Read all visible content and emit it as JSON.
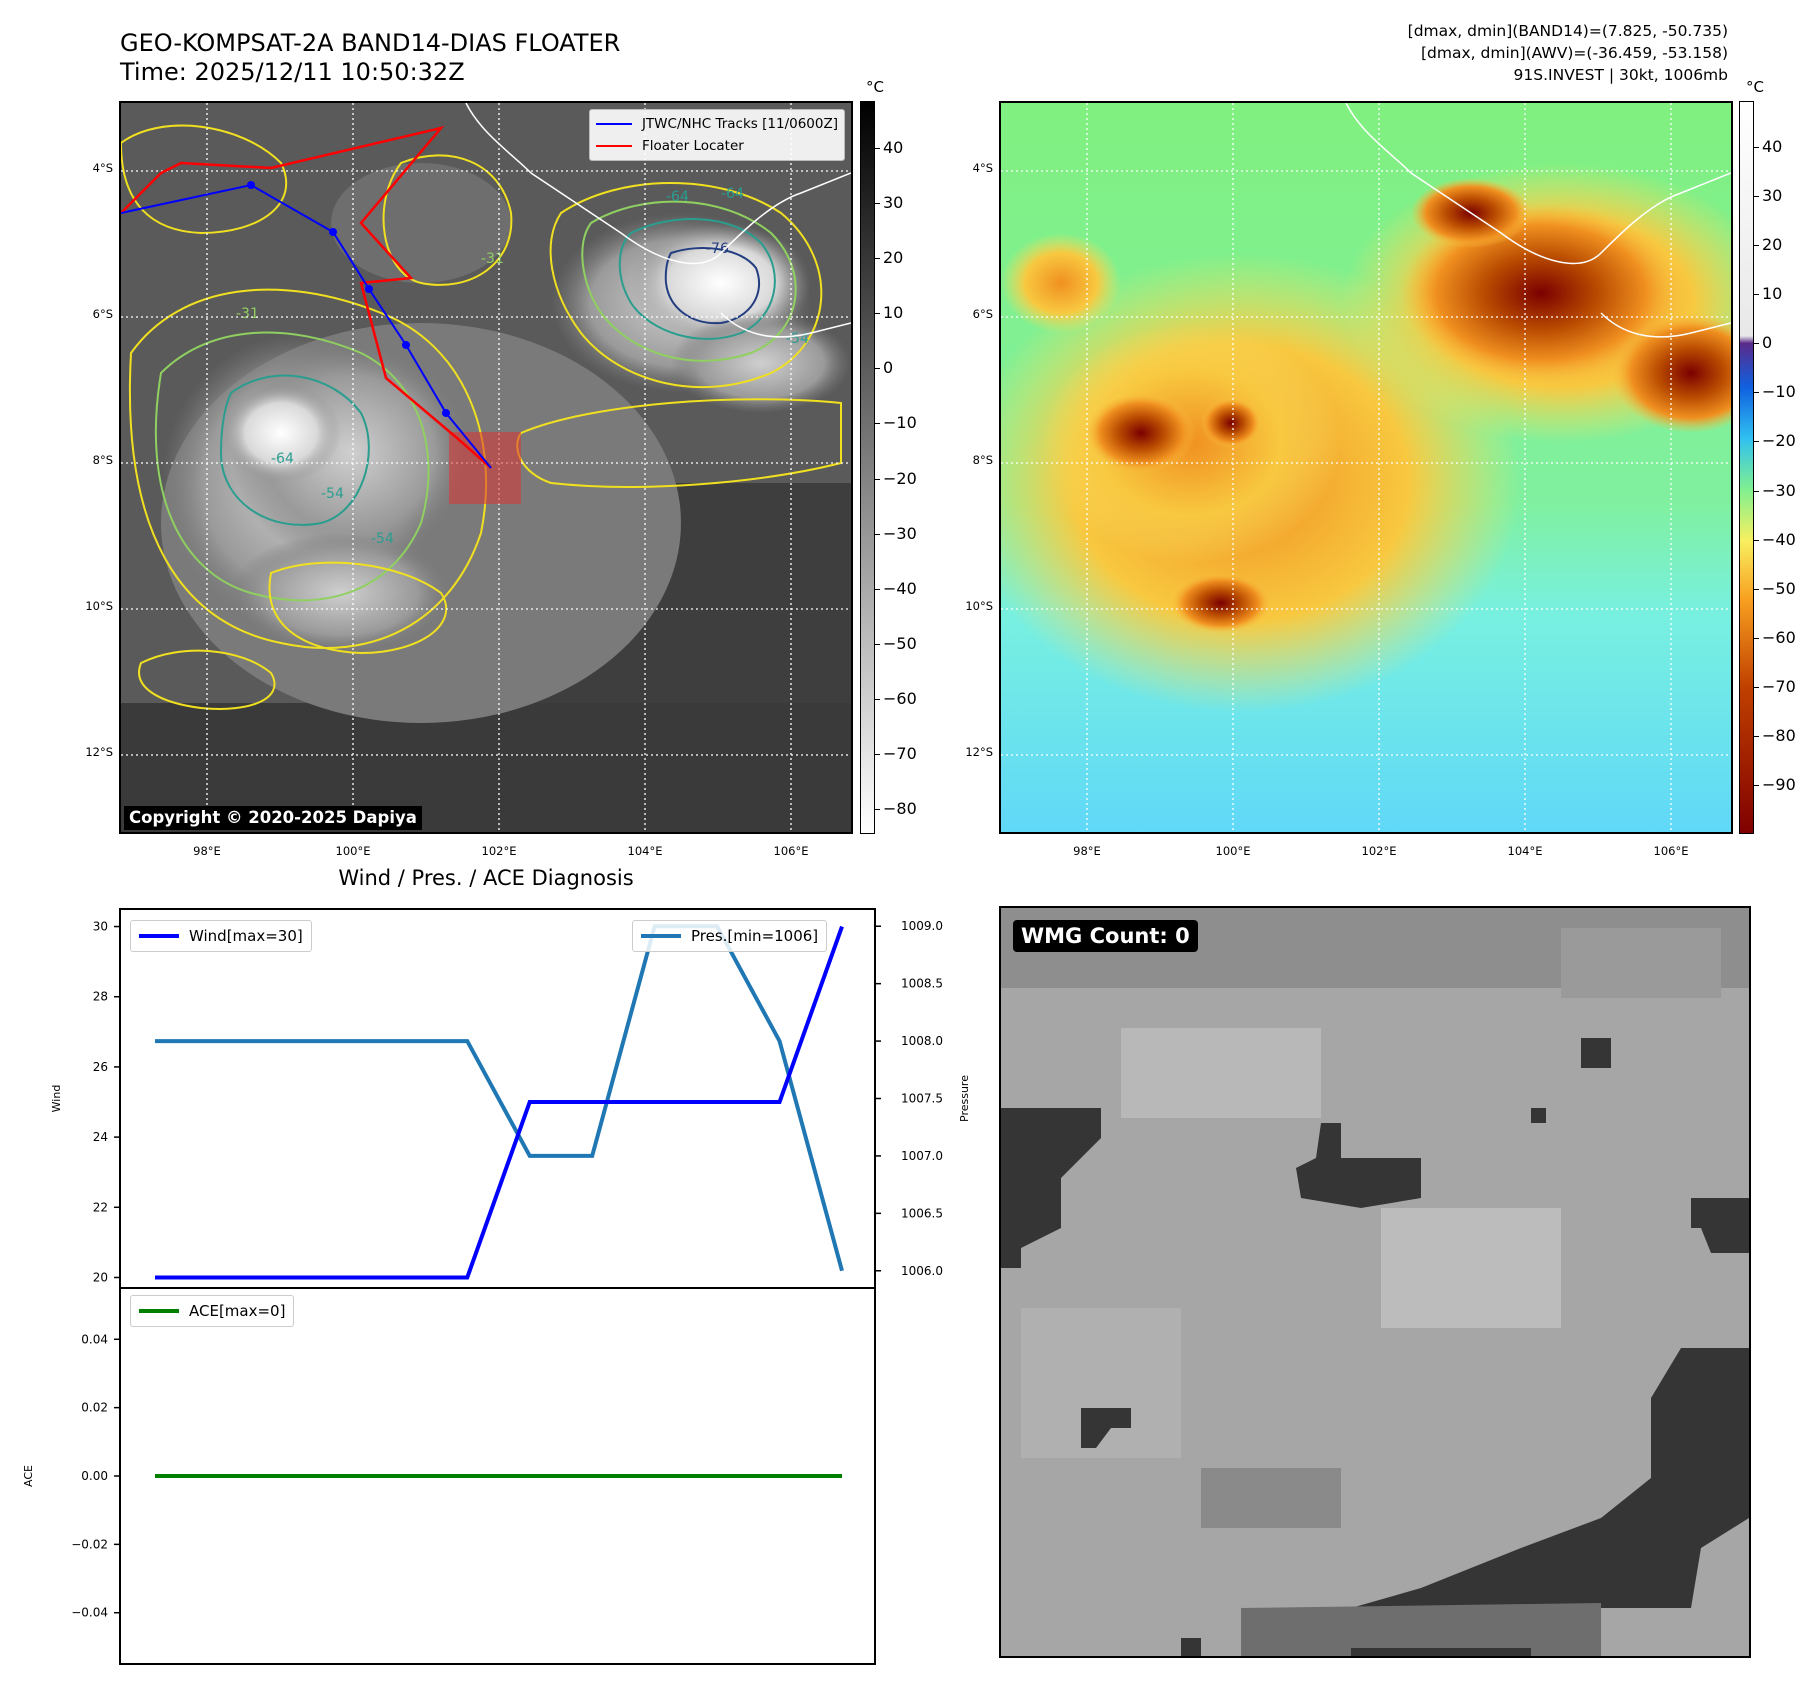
{
  "header": {
    "title_line1": "GEO-KOMPSAT-2A BAND14-DIAS FLOATER",
    "title_line2": "Time: 2025/12/11 10:50:32Z",
    "info_line1": "[dmax, dmin](BAND14)=(7.825, -50.735)",
    "info_line2": "[dmax, dmin](AWV)=(-36.459, -53.158)",
    "info_line3": "91S.INVEST | 30kt, 1006mb"
  },
  "maps": {
    "unit": "°C",
    "lat_ticks": [
      "4°S",
      "6°S",
      "8°S",
      "10°S",
      "12°S"
    ],
    "lon_ticks": [
      "98°E",
      "100°E",
      "102°E",
      "104°E",
      "106°E"
    ],
    "copyright": "Copyright © 2020-2025 Dapiya",
    "legend": {
      "tracks": "JTWC/NHC Tracks [11/0600Z]",
      "locater": "Floater Locater"
    },
    "contour_labels": [
      "-64",
      "-64",
      "-54",
      "-31",
      "-64",
      "-54",
      "-31",
      "-76",
      "-54"
    ],
    "left_colorbar_ticks": [
      "40",
      "30",
      "20",
      "10",
      "0",
      "−10",
      "−20",
      "−30",
      "−40",
      "−50",
      "−60",
      "−70",
      "−80"
    ],
    "right_colorbar_ticks": [
      "40",
      "30",
      "20",
      "10",
      "0",
      "−10",
      "−20",
      "−30",
      "−40",
      "−50",
      "−60",
      "−70",
      "−80",
      "−90"
    ],
    "colors": {
      "jtwc_track": "#0000ff",
      "floater_locater": "#ff0000",
      "locater_box": "#dd3333"
    }
  },
  "diagnosis": {
    "title": "Wind / Pres. / ACE Diagnosis",
    "wind_label": "Wind",
    "pressure_label": "Pressure",
    "ace_label": "ACE",
    "legend_wind": "Wind[max=30]",
    "legend_pres": "Pres.[min=1006]",
    "legend_ace": "ACE[max=0]",
    "wind_ticks": [
      "30",
      "28",
      "26",
      "24",
      "22",
      "20"
    ],
    "pres_ticks": [
      "1009.0",
      "1008.5",
      "1008.0",
      "1007.5",
      "1007.0",
      "1006.5",
      "1006.0"
    ],
    "ace_ticks": [
      "0.04",
      "0.02",
      "0.00",
      "−0.02",
      "−0.04"
    ],
    "colors": {
      "wind": "#0000ff",
      "pressure": "#1f77b4",
      "ace": "#008000"
    }
  },
  "wmg": {
    "label": "WMG Count: 0"
  },
  "chart_data": [
    {
      "type": "line",
      "title": "Wind / Pres. / ACE Diagnosis",
      "ylabel": "Wind",
      "y2label": "Pressure",
      "x": [
        0,
        1,
        2,
        3,
        4,
        5,
        6,
        7,
        8,
        9,
        10,
        11
      ],
      "series": [
        {
          "name": "Wind[max=30]",
          "axis": "left",
          "values": [
            20,
            20,
            20,
            20,
            20,
            20,
            25,
            25,
            25,
            25,
            25,
            30
          ]
        },
        {
          "name": "Pres.[min=1006]",
          "axis": "right",
          "values": [
            1008,
            1008,
            1008,
            1008,
            1008,
            1008,
            1007,
            1007,
            1009,
            1009,
            1008,
            1006
          ]
        }
      ],
      "ylim": [
        19.7,
        30.5
      ],
      "y2lim": [
        1005.85,
        1009.15
      ],
      "grid": false,
      "legend": [
        "upper left",
        "upper right"
      ]
    },
    {
      "type": "line",
      "ylabel": "ACE",
      "x": [
        0,
        1,
        2,
        3,
        4,
        5,
        6,
        7,
        8,
        9,
        10,
        11
      ],
      "series": [
        {
          "name": "ACE[max=0]",
          "values": [
            0,
            0,
            0,
            0,
            0,
            0,
            0,
            0,
            0,
            0,
            0,
            0
          ]
        }
      ],
      "ylim": [
        -0.055,
        0.055
      ],
      "grid": false,
      "legend": "upper left"
    }
  ]
}
